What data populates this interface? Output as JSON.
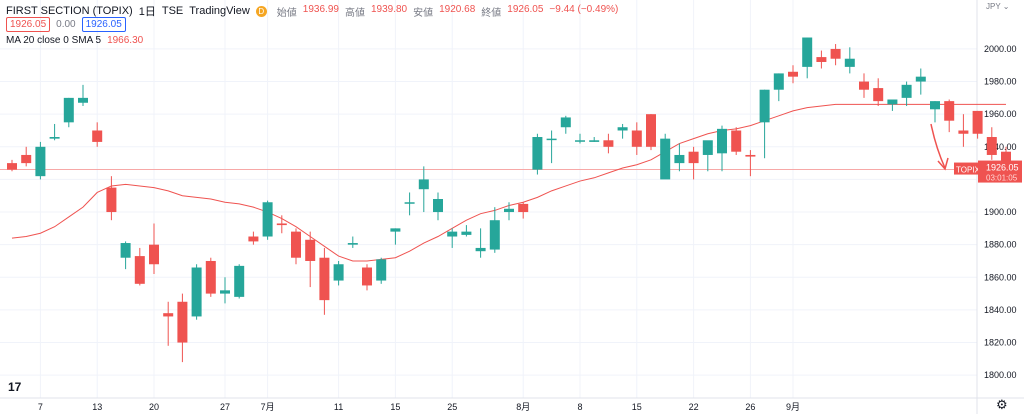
{
  "header": {
    "symbol": "FIRST SECTION (TOPIX)",
    "interval": "1日",
    "exchange": "TSE",
    "source": "TradingView",
    "badge": "D",
    "open_label": "始値",
    "open": "1936.99",
    "high_label": "高値",
    "high": "1939.80",
    "low_label": "安値",
    "low": "1920.68",
    "close_label": "終値",
    "close": "1926.05",
    "change": "−9.44 (−0.49%)",
    "sell_price": "1926.05",
    "mid_value": "0.00",
    "buy_price": "1926.05",
    "indicator_name": "MA 20 close 0 SMA 5",
    "indicator_value": "1966.30"
  },
  "logo_text": "17",
  "settings_icon": "gear-icon",
  "colors": {
    "up": "#26a69a",
    "down": "#ef5350",
    "ma": "#ef5350",
    "grid": "#f0f3fa",
    "axis_text": "#131722"
  },
  "chart_data": {
    "type": "candlestick",
    "currency": "JPY",
    "ylim": [
      1786,
      2030
    ],
    "yticks": [
      1800,
      1820,
      1840,
      1860,
      1880,
      1900,
      1920,
      1940,
      1960,
      1980,
      2000
    ],
    "xtick_labels": [
      {
        "i": 2,
        "label": "7"
      },
      {
        "i": 6,
        "label": "13"
      },
      {
        "i": 10,
        "label": "20"
      },
      {
        "i": 15,
        "label": "27"
      },
      {
        "i": 18,
        "label": "7月"
      },
      {
        "i": 23,
        "label": "11"
      },
      {
        "i": 27,
        "label": "15"
      },
      {
        "i": 31,
        "label": "25"
      },
      {
        "i": 36,
        "label": "8月"
      },
      {
        "i": 40,
        "label": "8"
      },
      {
        "i": 44,
        "label": "15"
      },
      {
        "i": 48,
        "label": "22"
      },
      {
        "i": 52,
        "label": "26"
      },
      {
        "i": 55,
        "label": "9月"
      }
    ],
    "candles": [
      [
        1930,
        1932,
        1925,
        1926
      ],
      [
        1935,
        1940,
        1928,
        1930
      ],
      [
        1922,
        1943,
        1920,
        1940
      ],
      [
        1945,
        1954,
        1944,
        1946
      ],
      [
        1955,
        1970,
        1952,
        1970
      ],
      [
        1967,
        1978,
        1965,
        1970
      ],
      [
        1950,
        1955,
        1940,
        1943
      ],
      [
        1915,
        1922,
        1895,
        1900
      ],
      [
        1872,
        1882,
        1865,
        1881
      ],
      [
        1873,
        1878,
        1855,
        1856
      ],
      [
        1880,
        1893,
        1862,
        1868
      ],
      [
        1838,
        1845,
        1818,
        1836
      ],
      [
        1845,
        1850,
        1808,
        1820
      ],
      [
        1836,
        1868,
        1834,
        1866
      ],
      [
        1870,
        1872,
        1848,
        1850
      ],
      [
        1850,
        1860,
        1844,
        1852
      ],
      [
        1848,
        1868,
        1847,
        1867
      ],
      [
        1885,
        1888,
        1880,
        1882
      ],
      [
        1885,
        1907,
        1883,
        1906
      ],
      [
        1893,
        1898,
        1887,
        1892
      ],
      [
        1888,
        1890,
        1868,
        1872
      ],
      [
        1883,
        1888,
        1854,
        1870
      ],
      [
        1872,
        1878,
        1837,
        1846
      ],
      [
        1858,
        1870,
        1855,
        1868
      ],
      [
        1880,
        1885,
        1878,
        1881
      ],
      [
        1866,
        1868,
        1852,
        1855
      ],
      [
        1858,
        1872,
        1856,
        1871
      ],
      [
        1888,
        1890,
        1880,
        1890
      ],
      [
        1906,
        1912,
        1898,
        1906
      ],
      [
        1914,
        1928,
        1900,
        1920
      ],
      [
        1900,
        1912,
        1895,
        1908
      ],
      [
        1885,
        1890,
        1878,
        1888
      ],
      [
        1886,
        1892,
        1885,
        1888
      ],
      [
        1876,
        1890,
        1872,
        1878
      ],
      [
        1877,
        1903,
        1875,
        1895
      ],
      [
        1900,
        1906,
        1895,
        1902
      ],
      [
        1905,
        1906,
        1896,
        1900
      ],
      [
        1926,
        1948,
        1923,
        1946
      ],
      [
        1945,
        1950,
        1930,
        1945
      ],
      [
        1952,
        1959,
        1948,
        1958
      ],
      [
        1944,
        1948,
        1942,
        1944
      ],
      [
        1943,
        1946,
        1943,
        1944
      ],
      [
        1944,
        1948,
        1936,
        1940
      ],
      [
        1950,
        1954,
        1945,
        1952
      ],
      [
        1950,
        1955,
        1935,
        1940
      ],
      [
        1960,
        1960,
        1938,
        1940
      ],
      [
        1920,
        1948,
        1921,
        1945
      ],
      [
        1930,
        1942,
        1925,
        1935
      ],
      [
        1937,
        1940,
        1920,
        1930
      ],
      [
        1935,
        1942,
        1925,
        1944
      ],
      [
        1936,
        1953,
        1925,
        1951
      ],
      [
        1950,
        1952,
        1935,
        1937
      ],
      [
        1935,
        1938,
        1922,
        1934
      ],
      [
        1955,
        1975,
        1933,
        1975
      ],
      [
        1975,
        1985,
        1968,
        1985
      ],
      [
        1986,
        1990,
        1979,
        1983
      ],
      [
        1989,
        2007,
        1982,
        2007
      ],
      [
        1995,
        1999,
        1988,
        1992
      ],
      [
        2000,
        2003,
        1990,
        1994
      ],
      [
        1989,
        2001,
        1985,
        1994
      ],
      [
        1980,
        1985,
        1970,
        1975
      ],
      [
        1976,
        1982,
        1965,
        1968
      ],
      [
        1966,
        1969,
        1962,
        1969
      ],
      [
        1970,
        1980,
        1965,
        1978
      ],
      [
        1980,
        1988,
        1972,
        1983
      ],
      [
        1963,
        1968,
        1955,
        1968
      ],
      [
        1968,
        1969,
        1949,
        1956
      ],
      [
        1950,
        1960,
        1940,
        1948
      ],
      [
        1962,
        1962,
        1945,
        1948
      ],
      [
        1946,
        1952,
        1932,
        1935
      ],
      [
        1937,
        1940,
        1921,
        1926
      ]
    ],
    "ma_series": {
      "name": "MA 20 close 0 SMA 5",
      "values": [
        1884,
        1885,
        1887,
        1891,
        1897,
        1903,
        1912,
        1916,
        1917,
        1916,
        1915,
        1913,
        1910,
        1909,
        1908,
        1906,
        1905,
        1903,
        1900,
        1896,
        1891,
        1885,
        1879,
        1873,
        1870,
        1870,
        1871,
        1872,
        1876,
        1881,
        1885,
        1890,
        1895,
        1899,
        1901,
        1904,
        1906,
        1909,
        1913,
        1916,
        1919,
        1921,
        1924,
        1927,
        1929,
        1932,
        1937,
        1942,
        1945,
        1948,
        1950,
        1951,
        1953,
        1956,
        1959,
        1962,
        1964,
        1965,
        1966,
        1966,
        1966,
        1966,
        1966,
        1966,
        1966,
        1966,
        1966,
        1966,
        1966,
        1966,
        1966
      ]
    },
    "last_price_label": "TOPIX",
    "last_price": "1926.05",
    "countdown": "03:01:05"
  }
}
